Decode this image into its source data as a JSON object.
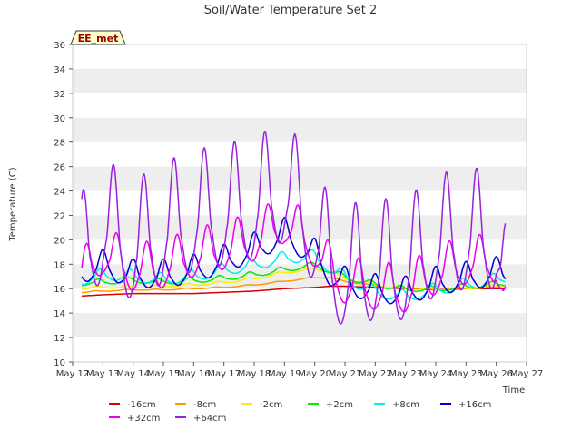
{
  "chart_data": {
    "type": "line",
    "title": "Soil/Water Temperature Set 2",
    "xlabel": "Time",
    "ylabel": "Temperature (C)",
    "ylim": [
      10,
      36
    ],
    "yticks": [
      10,
      12,
      14,
      16,
      18,
      20,
      22,
      24,
      26,
      28,
      30,
      32,
      34,
      36
    ],
    "xlim": [
      12,
      27
    ],
    "xticks": [
      {
        "v": 12,
        "label": "May 12"
      },
      {
        "v": 13,
        "label": "May 13"
      },
      {
        "v": 14,
        "label": "May 14"
      },
      {
        "v": 15,
        "label": "May 15"
      },
      {
        "v": 16,
        "label": "May 16"
      },
      {
        "v": 17,
        "label": "May 17"
      },
      {
        "v": 18,
        "label": "May 18"
      },
      {
        "v": 19,
        "label": "May 19"
      },
      {
        "v": 20,
        "label": "May 20"
      },
      {
        "v": 21,
        "label": "May 21"
      },
      {
        "v": 22,
        "label": "May 22"
      },
      {
        "v": 23,
        "label": "May 23"
      },
      {
        "v": 24,
        "label": "May 24"
      },
      {
        "v": 25,
        "label": "May 25"
      },
      {
        "v": 26,
        "label": "May 26"
      },
      {
        "v": 27,
        "label": "May 27"
      }
    ],
    "station_label": "EE_met",
    "grid": "horizontal bands",
    "legend_position": "bottom",
    "series": [
      {
        "name": "-16cm",
        "color": "#dd0000",
        "x": [
          12.3,
          13,
          14,
          15,
          16,
          17,
          18,
          19,
          20,
          20.5,
          21,
          22,
          23,
          24,
          25,
          26,
          26.3
        ],
        "y": [
          15.4,
          15.5,
          15.6,
          15.6,
          15.6,
          15.7,
          15.8,
          16.0,
          16.1,
          16.2,
          16.2,
          16.1,
          16.0,
          15.9,
          16.0,
          16.0,
          16.0
        ]
      },
      {
        "name": "-8cm",
        "color": "#ff9900",
        "x": [
          12.3,
          13,
          14,
          15,
          16,
          17,
          18,
          19,
          20,
          20.5,
          21,
          22,
          23,
          24,
          25,
          26,
          26.3
        ],
        "y": [
          15.7,
          15.8,
          15.9,
          15.9,
          16.0,
          16.1,
          16.3,
          16.6,
          16.9,
          16.9,
          16.6,
          16.2,
          16.0,
          15.9,
          16.0,
          16.1,
          16.1
        ]
      },
      {
        "name": "-2cm",
        "color": "#ffee00",
        "x": [
          12.3,
          13,
          14,
          15,
          16,
          17,
          18,
          19,
          20,
          20.5,
          21,
          22,
          23,
          24,
          25,
          26,
          26.3
        ],
        "y": [
          16.0,
          16.1,
          16.1,
          16.2,
          16.3,
          16.5,
          16.8,
          17.3,
          17.6,
          17.4,
          16.8,
          16.3,
          16.0,
          15.9,
          16.0,
          16.2,
          16.2
        ]
      },
      {
        "name": "+2cm",
        "color": "#00ee00",
        "x": [
          12.3,
          13,
          14,
          15,
          16,
          17,
          18,
          19,
          20,
          20.5,
          21,
          22,
          23,
          24,
          25,
          26,
          26.3
        ],
        "y": [
          16.4,
          16.5,
          16.6,
          16.5,
          16.6,
          16.8,
          17.1,
          17.5,
          17.9,
          17.4,
          16.9,
          16.3,
          15.9,
          15.9,
          16.1,
          16.3,
          16.4
        ]
      },
      {
        "name": "+8cm",
        "color": "#00eeee",
        "x": [
          12.3,
          13,
          14,
          15,
          16,
          17,
          18,
          19,
          20,
          20.5,
          21,
          22,
          23,
          24,
          25,
          26,
          26.3
        ],
        "y": [
          16.6,
          17.0,
          16.9,
          16.6,
          16.9,
          17.4,
          17.8,
          18.4,
          18.5,
          17.6,
          16.8,
          15.6,
          15.2,
          15.8,
          16.2,
          16.6,
          16.8
        ]
      },
      {
        "name": "+16cm",
        "color": "#0000cc",
        "x": [
          12.3,
          13,
          14,
          15,
          16,
          17,
          18,
          19,
          20,
          20.5,
          21,
          22,
          23,
          24,
          25,
          26,
          26.3
        ],
        "y": [
          17.2,
          17.6,
          16.8,
          16.8,
          17.2,
          18.0,
          19.0,
          20.2,
          18.5,
          17.0,
          16.2,
          15.6,
          15.4,
          16.2,
          16.6,
          17.0,
          17.0
        ]
      },
      {
        "name": "+32cm",
        "color": "#ee00ee",
        "x": [
          12.3,
          13,
          14,
          15,
          16,
          17,
          18,
          19,
          20,
          20.5,
          21,
          22,
          23,
          24,
          25,
          26,
          26.3
        ],
        "y": [
          16.5,
          18.5,
          17.0,
          17.3,
          18.2,
          18.8,
          19.5,
          21.0,
          19.0,
          17.0,
          16.0,
          15.5,
          15.3,
          16.8,
          17.6,
          17.8,
          15.0
        ]
      },
      {
        "name": "+64cm",
        "color": "#9922dd",
        "x": [
          12.3,
          13,
          14,
          15,
          16,
          17,
          18,
          19,
          20,
          20.5,
          21,
          22,
          23,
          24,
          25,
          26,
          26.3
        ],
        "y": [
          17.0,
          20.0,
          18.0,
          19.5,
          20.5,
          21.0,
          21.5,
          23.0,
          19.5,
          16.5,
          16.0,
          16.5,
          16.5,
          18.5,
          19.0,
          19.0,
          15.0
        ]
      }
    ]
  }
}
